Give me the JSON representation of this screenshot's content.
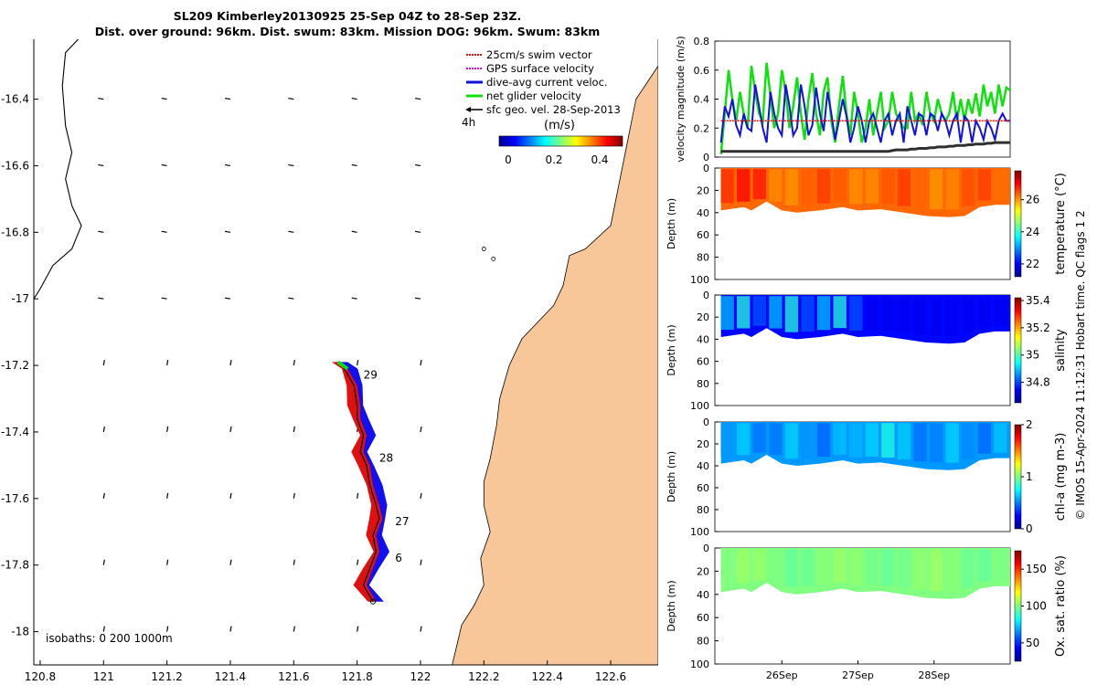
{
  "header": {
    "title_line1": "SL209 Kimberley20130925 25-Sep 04Z to 28-Sep 23Z.",
    "title_line2": "Dist. over ground: 96km. Dist. swum: 83km. Mission DOG: 96km. Swum: 83km"
  },
  "map": {
    "legend": [
      {
        "label": "25cm/s swim vector",
        "color": "#e01010",
        "style": "dotted"
      },
      {
        "label": "GPS surface velocity",
        "color": "#e010e0",
        "style": "dotted"
      },
      {
        "label": "dive-avg current veloc.",
        "color": "#1010e0",
        "style": "solid"
      },
      {
        "label": "net glider velocity",
        "color": "#10e010",
        "style": "solid"
      },
      {
        "label": "sfc geo. vel. 28-Sep-2013",
        "color": "#000000",
        "style": "arrow"
      }
    ],
    "time_label": "4h",
    "colorbar_unit": "(m/s)",
    "colorbar_ticks": [
      "0",
      "0.2",
      "0.4"
    ],
    "isobaths_label": "isobaths: 0   200  1000m",
    "x_ticks": [
      "120.8",
      "121",
      "121.2",
      "121.4",
      "121.6",
      "121.8",
      "122",
      "122.2",
      "122.4",
      "122.6"
    ],
    "y_ticks": [
      "-16.4",
      "-16.6",
      "-16.8",
      "-17",
      "-17.2",
      "-17.4",
      "-17.6",
      "-17.8",
      "-18"
    ],
    "day_labels": [
      "29",
      "28",
      "27",
      "6"
    ],
    "land_color": "#f7c79a"
  },
  "side_text": "© IMOS 15-Apr-2024 11:12:31 Hobart time. QC flags 1  2",
  "panels": {
    "x_ticks": [
      "26Sep",
      "27Sep",
      "28Sep"
    ],
    "velocity": {
      "ylabel": "velocity magnitude (m/s)",
      "y_ticks": [
        "0",
        "0.2",
        "0.4",
        "0.6",
        "0.8"
      ]
    },
    "depth_ylabel": "Depth (m)",
    "depth_ticks": [
      "0",
      "20",
      "40",
      "60",
      "80",
      "100"
    ],
    "temperature": {
      "label": "temperature (°C)",
      "ticks": [
        "22",
        "24",
        "26"
      ]
    },
    "salinity": {
      "label": "salinity",
      "ticks": [
        "34.8",
        "35",
        "35.2",
        "35.4"
      ]
    },
    "chla": {
      "label": "chl-a (mg m-3)",
      "ticks": [
        "0",
        "1",
        "2"
      ]
    },
    "oxygen": {
      "label": "Ox. sat. ratio (%)",
      "ticks": [
        "50",
        "100",
        "150"
      ]
    }
  },
  "chart_data": [
    {
      "type": "scatter",
      "title": "SL209 Kimberley20130925 25-Sep 04Z to 28-Sep 23Z.",
      "xlim": [
        120.78,
        122.75
      ],
      "ylim": [
        -18.1,
        -16.22
      ],
      "glider_track": [
        {
          "lon": 121.74,
          "lat": -17.19
        },
        {
          "lon": 121.76,
          "lat": -17.21
        },
        {
          "lon": 121.79,
          "lat": -17.26
        },
        {
          "lon": 121.8,
          "lat": -17.32
        },
        {
          "lon": 121.8,
          "lat": -17.36
        },
        {
          "lon": 121.82,
          "lat": -17.41
        },
        {
          "lon": 121.81,
          "lat": -17.46
        },
        {
          "lon": 121.83,
          "lat": -17.5
        },
        {
          "lon": 121.84,
          "lat": -17.56
        },
        {
          "lon": 121.86,
          "lat": -17.62
        },
        {
          "lon": 121.87,
          "lat": -17.66
        },
        {
          "lon": 121.85,
          "lat": -17.71
        },
        {
          "lon": 121.86,
          "lat": -17.76
        },
        {
          "lon": 121.84,
          "lat": -17.81
        },
        {
          "lon": 121.82,
          "lat": -17.86
        },
        {
          "lon": 121.85,
          "lat": -17.91
        }
      ]
    },
    {
      "type": "line",
      "x": [
        25.2,
        25.25,
        25.3,
        25.35,
        25.4,
        25.45,
        25.5,
        25.55,
        25.6,
        25.65,
        25.7,
        25.75,
        25.8,
        25.85,
        25.9,
        25.95,
        26.0,
        26.05,
        26.1,
        26.15,
        26.2,
        26.25,
        26.3,
        26.35,
        26.4,
        26.45,
        26.5,
        26.55,
        26.6,
        26.65,
        26.7,
        26.75,
        26.8,
        26.85,
        26.9,
        26.95,
        27.0,
        27.05,
        27.1,
        27.15,
        27.2,
        27.25,
        27.3,
        27.35,
        27.4,
        27.45,
        27.5,
        27.55,
        27.6,
        27.65,
        27.7,
        27.75,
        27.8,
        27.85,
        27.9,
        27.95,
        28.0,
        28.05,
        28.1,
        28.15,
        28.2,
        28.25,
        28.3,
        28.35,
        28.4,
        28.45,
        28.5,
        28.55,
        28.6,
        28.65,
        28.7,
        28.75,
        28.8,
        28.85,
        28.9,
        28.95,
        29.0
      ],
      "xlim": [
        25.12,
        29.0
      ],
      "ylim": [
        0,
        0.8
      ],
      "ylabel": "velocity magnitude (m/s)",
      "series": [
        {
          "name": "net glider velocity",
          "color": "#10e010",
          "values": [
            0.02,
            0.3,
            0.6,
            0.4,
            0.25,
            0.45,
            0.3,
            0.2,
            0.63,
            0.45,
            0.3,
            0.25,
            0.65,
            0.42,
            0.2,
            0.3,
            0.6,
            0.45,
            0.2,
            0.35,
            0.55,
            0.3,
            0.12,
            0.4,
            0.58,
            0.3,
            0.15,
            0.45,
            0.55,
            0.25,
            0.1,
            0.35,
            0.56,
            0.3,
            0.15,
            0.45,
            0.3,
            0.1,
            0.2,
            0.4,
            0.15,
            0.3,
            0.45,
            0.2,
            0.25,
            0.45,
            0.3,
            0.25,
            0.2,
            0.2,
            0.45,
            0.25,
            0.3,
            0.22,
            0.45,
            0.3,
            0.25,
            0.4,
            0.3,
            0.25,
            0.3,
            0.45,
            0.25,
            0.4,
            0.25,
            0.4,
            0.3,
            0.44,
            0.28,
            0.5,
            0.35,
            0.45,
            0.3,
            0.5,
            0.35,
            0.48,
            0.46
          ]
        },
        {
          "name": "dive-avg current veloc.",
          "color": "#1010e0",
          "values": [
            0.1,
            0.35,
            0.28,
            0.4,
            0.22,
            0.15,
            0.3,
            0.2,
            0.18,
            0.5,
            0.35,
            0.2,
            0.1,
            0.45,
            0.3,
            0.2,
            0.15,
            0.5,
            0.35,
            0.15,
            0.2,
            0.5,
            0.35,
            0.15,
            0.22,
            0.48,
            0.3,
            0.18,
            0.45,
            0.3,
            0.12,
            0.25,
            0.4,
            0.28,
            0.1,
            0.2,
            0.35,
            0.25,
            0.1,
            0.25,
            0.3,
            0.2,
            0.1,
            0.25,
            0.3,
            0.15,
            0.25,
            0.3,
            0.1,
            0.35,
            0.25,
            0.15,
            0.3,
            0.28,
            0.15,
            0.3,
            0.28,
            0.18,
            0.3,
            0.25,
            0.15,
            0.25,
            0.3,
            0.1,
            0.28,
            0.25,
            0.1,
            0.25,
            0.2,
            0.12,
            0.25,
            0.2,
            0.12,
            0.25,
            0.3,
            0.25,
            0.25
          ]
        },
        {
          "name": "25cm/s swim vector",
          "color": "#e01010",
          "values": [
            0.25,
            0.25,
            0.25,
            0.25,
            0.25,
            0.25,
            0.25,
            0.25,
            0.25,
            0.25,
            0.25,
            0.25,
            0.25,
            0.25,
            0.25,
            0.25,
            0.25,
            0.25,
            0.25,
            0.25,
            0.25,
            0.25,
            0.25,
            0.25,
            0.25,
            0.25,
            0.25,
            0.25,
            0.25,
            0.25,
            0.25,
            0.25,
            0.25,
            0.25,
            0.25,
            0.25,
            0.25,
            0.25,
            0.25,
            0.25,
            0.25,
            0.25,
            0.25,
            0.25,
            0.25,
            0.25,
            0.25,
            0.25,
            0.25,
            0.25,
            0.25,
            0.25,
            0.25,
            0.25,
            0.25,
            0.25,
            0.25,
            0.25,
            0.25,
            0.25,
            0.25,
            0.25,
            0.25,
            0.25,
            0.25,
            0.25,
            0.25,
            0.25,
            0.25,
            0.25,
            0.25,
            0.25,
            0.25,
            0.25,
            0.25,
            0.25,
            0.25
          ]
        },
        {
          "name": "sfc geo. vel. 28-Sep-2013",
          "color": "#303030",
          "values": [
            0.04,
            0.04,
            0.04,
            0.04,
            0.04,
            0.04,
            0.04,
            0.04,
            0.04,
            0.04,
            0.04,
            0.04,
            0.04,
            0.04,
            0.04,
            0.04,
            0.04,
            0.04,
            0.04,
            0.04,
            0.04,
            0.04,
            0.04,
            0.04,
            0.04,
            0.04,
            0.04,
            0.04,
            0.04,
            0.04,
            0.04,
            0.04,
            0.04,
            0.04,
            0.04,
            0.04,
            0.04,
            0.04,
            0.04,
            0.04,
            0.04,
            0.04,
            0.04,
            0.04,
            0.04,
            0.045,
            0.05,
            0.05,
            0.05,
            0.05,
            0.055,
            0.055,
            0.06,
            0.06,
            0.06,
            0.065,
            0.065,
            0.07,
            0.07,
            0.07,
            0.075,
            0.075,
            0.08,
            0.08,
            0.08,
            0.085,
            0.085,
            0.09,
            0.09,
            0.09,
            0.095,
            0.095,
            0.1,
            0.1,
            0.1,
            0.1,
            0.1
          ]
        }
      ]
    },
    {
      "type": "heatmap",
      "variable": "temperature (°C)",
      "xlim": [
        25.12,
        29.0
      ],
      "ylim": [
        100,
        0
      ],
      "colorbar_range": [
        21.2,
        27.8
      ],
      "bottom_depth_m": {
        "x": [
          25.2,
          25.5,
          25.6,
          25.8,
          26.0,
          26.2,
          26.5,
          26.8,
          27.0,
          27.3,
          27.6,
          27.9,
          28.2,
          28.4,
          28.6,
          28.8,
          29.0
        ],
        "depth": [
          38,
          35,
          38,
          30,
          38,
          40,
          38,
          35,
          38,
          37,
          40,
          43,
          44,
          43,
          35,
          33,
          33
        ]
      },
      "typical_value": 26.3
    },
    {
      "type": "heatmap",
      "variable": "salinity",
      "xlim": [
        25.12,
        29.0
      ],
      "ylim": [
        100,
        0
      ],
      "colorbar_range": [
        34.65,
        35.42
      ],
      "bottom_depth_m": {
        "x": [
          25.2,
          25.5,
          25.6,
          25.8,
          26.0,
          26.2,
          26.5,
          26.8,
          27.0,
          27.3,
          27.6,
          27.9,
          28.2,
          28.4,
          28.6,
          28.8,
          29.0
        ],
        "depth": [
          38,
          35,
          38,
          30,
          38,
          40,
          38,
          35,
          38,
          37,
          40,
          43,
          44,
          43,
          35,
          33,
          33
        ]
      },
      "typical_value": 34.75
    },
    {
      "type": "heatmap",
      "variable": "chl-a (mg m-3)",
      "xlim": [
        25.12,
        29.0
      ],
      "ylim": [
        100,
        0
      ],
      "colorbar_range": [
        0,
        2
      ],
      "bottom_depth_m": {
        "x": [
          25.2,
          25.5,
          25.6,
          25.8,
          26.0,
          26.2,
          26.5,
          26.8,
          27.0,
          27.3,
          27.6,
          27.9,
          28.2,
          28.4,
          28.6,
          28.8,
          29.0
        ],
        "depth": [
          38,
          35,
          38,
          30,
          38,
          40,
          38,
          35,
          38,
          37,
          40,
          43,
          44,
          43,
          35,
          33,
          33
        ]
      },
      "typical_value": 0.55
    },
    {
      "type": "heatmap",
      "variable": "Ox. sat. ratio (%)",
      "xlim": [
        25.12,
        29.0
      ],
      "ylim": [
        100,
        0
      ],
      "colorbar_range": [
        25,
        175
      ],
      "bottom_depth_m": {
        "x": [
          25.2,
          25.5,
          25.6,
          25.8,
          26.0,
          26.2,
          26.5,
          26.8,
          27.0,
          27.3,
          27.6,
          27.9,
          28.2,
          28.4,
          28.6,
          28.8,
          29.0
        ],
        "depth": [
          38,
          35,
          38,
          30,
          38,
          40,
          38,
          35,
          38,
          37,
          40,
          43,
          44,
          43,
          35,
          33,
          33
        ]
      },
      "typical_value": 100
    }
  ]
}
